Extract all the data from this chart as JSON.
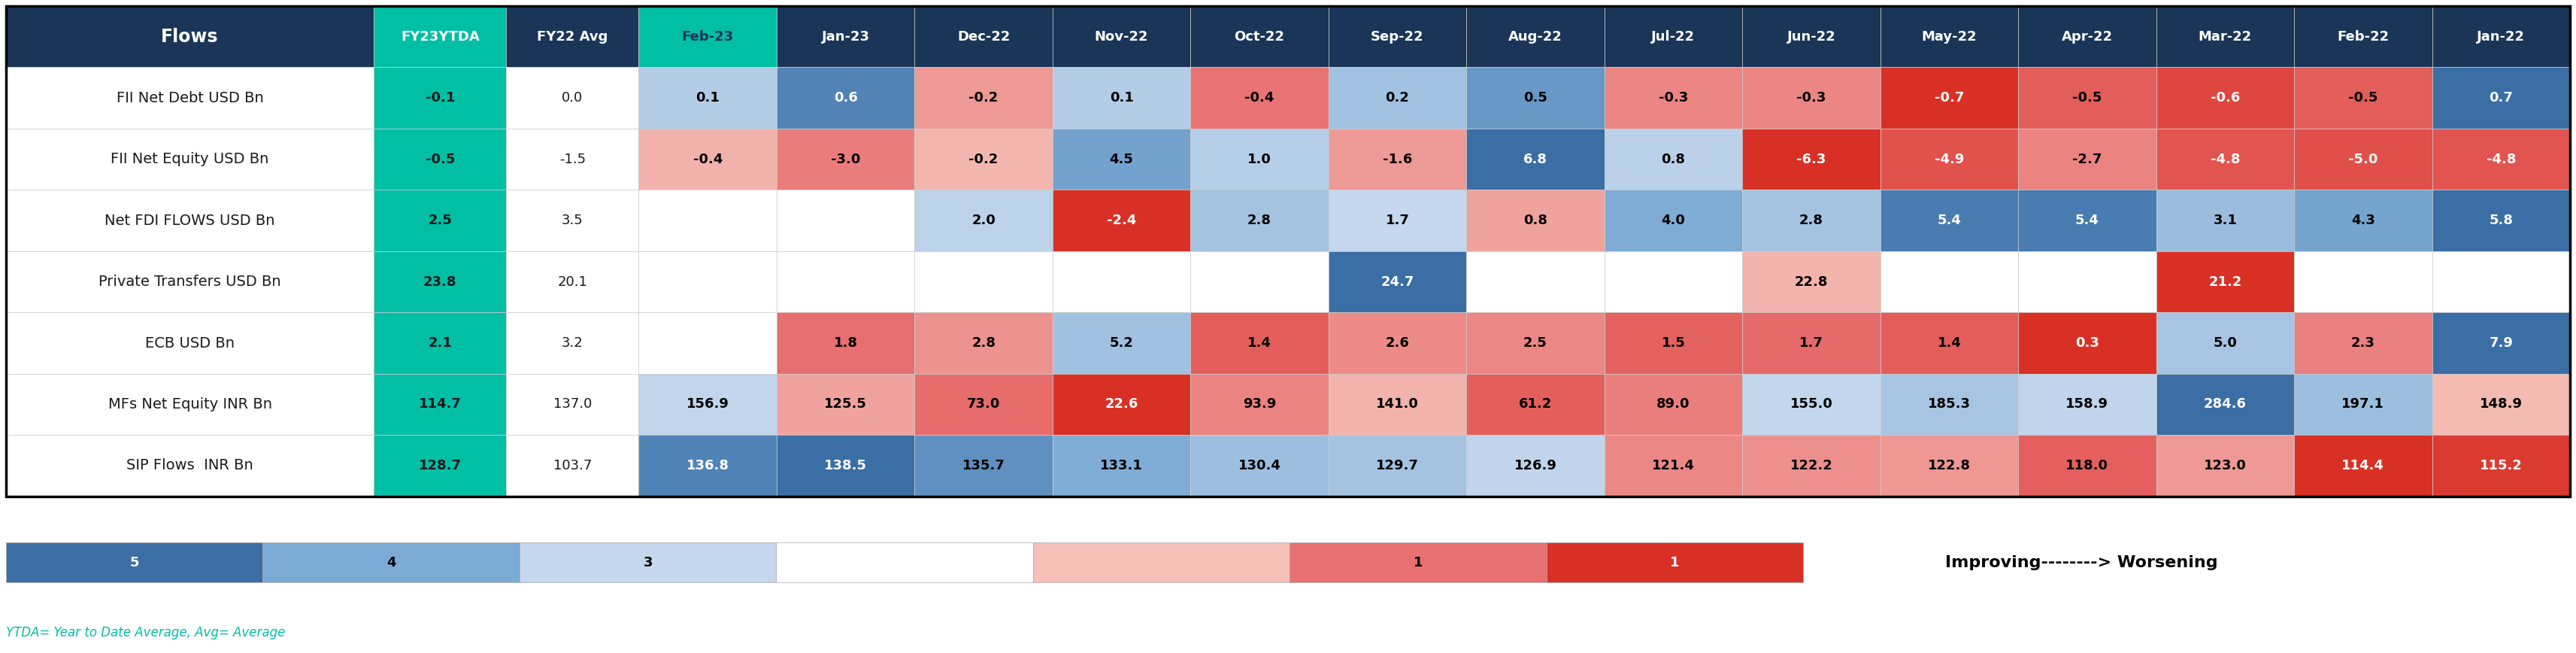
{
  "headers": [
    "Flows",
    "FY23YTDA",
    "FY22 Avg",
    "Feb-23",
    "Jan-23",
    "Dec-22",
    "Nov-22",
    "Oct-22",
    "Sep-22",
    "Aug-22",
    "Jul-22",
    "Jun-22",
    "May-22",
    "Apr-22",
    "Mar-22",
    "Feb-22",
    "Jan-22"
  ],
  "rows": [
    {
      "label": "FII Net Debt USD Bn",
      "ytda": -0.1,
      "avg": 0.0,
      "values": [
        0.1,
        0.6,
        -0.2,
        0.1,
        -0.4,
        0.2,
        0.5,
        -0.3,
        -0.3,
        -0.7,
        -0.5,
        -0.6,
        -0.5,
        0.7
      ]
    },
    {
      "label": "FII Net Equity USD Bn",
      "ytda": -0.5,
      "avg": -1.5,
      "values": [
        -0.4,
        -3.0,
        -0.2,
        4.5,
        1.0,
        -1.6,
        6.8,
        0.8,
        -6.3,
        -4.9,
        -2.7,
        -4.8,
        -5.0,
        -4.8
      ]
    },
    {
      "label": "Net FDI FLOWS USD Bn",
      "ytda": 2.5,
      "avg": 3.5,
      "values": [
        null,
        null,
        2.0,
        -2.4,
        2.8,
        1.7,
        0.8,
        4.0,
        2.8,
        5.4,
        5.4,
        3.1,
        4.3,
        5.8
      ]
    },
    {
      "label": "Private Transfers USD Bn",
      "ytda": 23.8,
      "avg": 20.1,
      "values": [
        null,
        null,
        null,
        null,
        null,
        24.7,
        null,
        null,
        22.8,
        null,
        null,
        21.2,
        null,
        null
      ]
    },
    {
      "label": "ECB USD Bn",
      "ytda": 2.1,
      "avg": 3.2,
      "values": [
        null,
        1.8,
        2.8,
        5.2,
        1.4,
        2.6,
        2.5,
        1.5,
        1.7,
        1.4,
        0.3,
        5.0,
        2.3,
        7.9
      ]
    },
    {
      "label": "MFs Net Equity INR Bn",
      "ytda": 114.7,
      "avg": 137.0,
      "values": [
        156.9,
        125.5,
        73.0,
        22.6,
        93.9,
        141.0,
        61.2,
        89.0,
        155.0,
        185.3,
        158.9,
        284.6,
        197.1,
        148.9
      ]
    },
    {
      "label": "SIP Flows  INR Bn",
      "ytda": 128.7,
      "avg": 103.7,
      "values": [
        136.8,
        138.5,
        135.7,
        133.1,
        130.4,
        129.7,
        126.9,
        121.4,
        122.2,
        122.8,
        118.0,
        123.0,
        114.4,
        115.2
      ]
    }
  ],
  "header_bg": "#1a3557",
  "header_fg": "#ffffff",
  "ytda_bg": "#00BFA5",
  "ytda_fg": "#ffffff",
  "feb23_bg": "#00BFA5",
  "feb23_fg": "#1a3557",
  "row_label_bg": "#ffffff",
  "row_label_fg": "#000000",
  "avg_bg": "#ffffff",
  "avg_fg": "#000000",
  "legend_label": "Improving--------> Worsening",
  "footnote": "YTDA= Year to Date Average, Avg= Average",
  "cell_edge_color": "#cccccc",
  "outer_border_color": "#000000",
  "col_widths_rel": [
    2.0,
    0.72,
    0.72,
    0.75,
    0.75,
    0.75,
    0.75,
    0.75,
    0.75,
    0.75,
    0.75,
    0.75,
    0.75,
    0.75,
    0.75,
    0.75,
    0.75
  ],
  "fii_debt_range": [
    -0.7,
    0.7
  ],
  "fii_equity_range": [
    -6.3,
    6.8
  ],
  "fdi_range": [
    -2.4,
    5.8
  ],
  "private_range": [
    21.2,
    24.7
  ],
  "ecb_range": [
    0.3,
    7.9
  ],
  "mf_range": [
    22.6,
    284.6
  ],
  "sip_range": [
    114.4,
    138.5
  ]
}
